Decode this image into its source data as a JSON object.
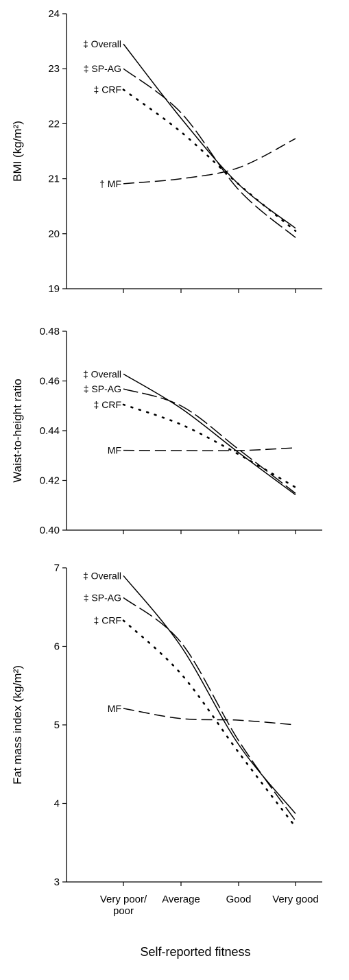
{
  "chart_data": [
    {
      "type": "line",
      "ylabel": "BMI (kg/m²)",
      "ylim": [
        19,
        24
      ],
      "yticks": [
        "19",
        "20",
        "21",
        "22",
        "23",
        "24"
      ],
      "categories": [
        "Very poor/ poor",
        "Average",
        "Good",
        "Very good"
      ],
      "series": [
        {
          "name": "Overall",
          "marker": "‡",
          "style": "solid",
          "values": [
            23.45,
            22.1,
            20.9,
            20.1
          ]
        },
        {
          "name": "SP-AG",
          "marker": "‡",
          "style": "longdash",
          "values": [
            23.0,
            22.2,
            20.8,
            19.93
          ]
        },
        {
          "name": "CRF",
          "marker": "‡",
          "style": "dotted",
          "values": [
            22.62,
            21.85,
            20.9,
            20.05
          ]
        },
        {
          "name": "MF",
          "marker": "†",
          "style": "dash",
          "values": [
            20.91,
            21.0,
            21.2,
            21.73
          ]
        }
      ]
    },
    {
      "type": "line",
      "ylabel": "Waist-to-height ratio",
      "ylim": [
        0.4,
        0.48
      ],
      "yticks": [
        "0.40",
        "0.42",
        "0.44",
        "0.46",
        "0.48"
      ],
      "categories": [
        "Very poor/ poor",
        "Average",
        "Good",
        "Very good"
      ],
      "series": [
        {
          "name": "Overall",
          "marker": "‡",
          "style": "solid",
          "values": [
            0.4628,
            0.449,
            0.4312,
            0.4142
          ]
        },
        {
          "name": "SP-AG",
          "marker": "‡",
          "style": "longdash",
          "values": [
            0.4568,
            0.45,
            0.4325,
            0.4148
          ]
        },
        {
          "name": "CRF",
          "marker": "‡",
          "style": "dotted",
          "values": [
            0.4505,
            0.4425,
            0.4305,
            0.4172
          ]
        },
        {
          "name": "MF",
          "marker": "",
          "style": "dash",
          "values": [
            0.4321,
            0.432,
            0.432,
            0.4331
          ]
        }
      ]
    },
    {
      "type": "line",
      "ylabel": "Fat mass index (kg/m²)",
      "ylim": [
        3,
        7
      ],
      "yticks": [
        "3",
        "4",
        "5",
        "6",
        "7"
      ],
      "categories": [
        "Very poor/ poor",
        "Average",
        "Good",
        "Very good"
      ],
      "xlabel": "Self-reported fitness",
      "series": [
        {
          "name": "Overall",
          "marker": "‡",
          "style": "solid",
          "values": [
            6.9,
            6.0,
            4.75,
            3.87
          ]
        },
        {
          "name": "SP-AG",
          "marker": "‡",
          "style": "longdash",
          "values": [
            6.62,
            6.05,
            4.8,
            3.78
          ]
        },
        {
          "name": "CRF",
          "marker": "‡",
          "style": "dotted",
          "values": [
            6.33,
            5.65,
            4.65,
            3.7
          ]
        },
        {
          "name": "MF",
          "marker": "",
          "style": "dash",
          "values": [
            5.21,
            5.08,
            5.06,
            5.0
          ]
        }
      ]
    }
  ]
}
